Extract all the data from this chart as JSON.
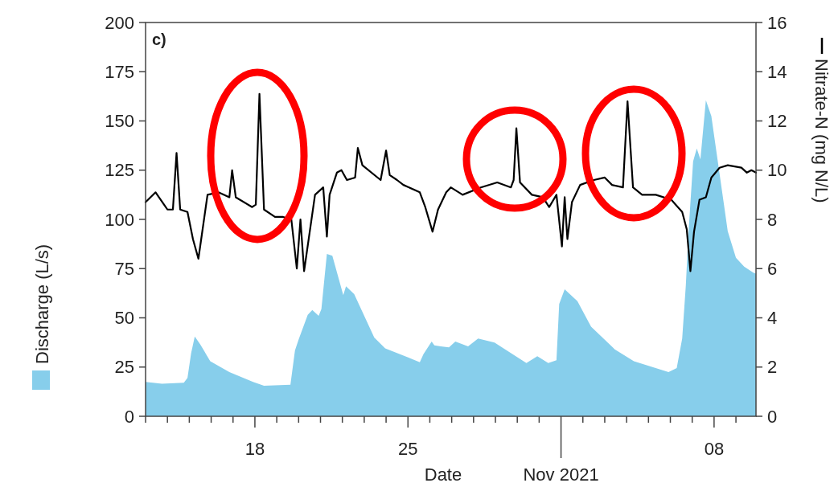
{
  "chart_data": {
    "type": "area",
    "annotations": [
      "c)",
      {
        "text": "Nov 2021",
        "x": "2021-11-01"
      }
    ],
    "xlabel": "Date",
    "ylabel": "Discharge (L/s)",
    "y2label": "Nitrate-N (mg N/L)",
    "xlim": [
      "2021-10-13T00:00",
      "2021-11-09T22:00"
    ],
    "xticks": [
      {
        "value": "2021-10-13",
        "label": null
      },
      {
        "value": "2021-10-14",
        "label": null
      },
      {
        "value": "2021-10-15",
        "label": null
      },
      {
        "value": "2021-10-16",
        "label": null
      },
      {
        "value": "2021-10-17",
        "label": null
      },
      {
        "value": "2021-10-18",
        "label": "18"
      },
      {
        "value": "2021-10-19",
        "label": null
      },
      {
        "value": "2021-10-20",
        "label": null
      },
      {
        "value": "2021-10-21",
        "label": null
      },
      {
        "value": "2021-10-22",
        "label": null
      },
      {
        "value": "2021-10-23",
        "label": null
      },
      {
        "value": "2021-10-24",
        "label": null
      },
      {
        "value": "2021-10-25",
        "label": "25"
      },
      {
        "value": "2021-10-26",
        "label": null
      },
      {
        "value": "2021-10-27",
        "label": null
      },
      {
        "value": "2021-10-28",
        "label": null
      },
      {
        "value": "2021-10-29",
        "label": null
      },
      {
        "value": "2021-10-30",
        "label": null
      },
      {
        "value": "2021-10-31",
        "label": null
      },
      {
        "value": "2021-11-01",
        "label": null
      },
      {
        "value": "2021-11-02",
        "label": null
      },
      {
        "value": "2021-11-03",
        "label": null
      },
      {
        "value": "2021-11-04",
        "label": null
      },
      {
        "value": "2021-11-05",
        "label": null
      },
      {
        "value": "2021-11-06",
        "label": null
      },
      {
        "value": "2021-11-07",
        "label": null
      },
      {
        "value": "2021-11-08",
        "label": "08"
      },
      {
        "value": "2021-11-09",
        "label": null
      }
    ],
    "ylim": [
      0,
      200
    ],
    "yticks": [
      0,
      25,
      50,
      75,
      100,
      125,
      150,
      175,
      200
    ],
    "y2lim": [
      0,
      16
    ],
    "y2ticks": [
      0,
      2,
      4,
      6,
      8,
      10,
      12,
      14,
      16
    ],
    "series": [
      {
        "color": "#87ceeb",
        "x": [
          "2021-10-13T00:00",
          "2021-10-13T18:00",
          "2021-10-14T18:00",
          "2021-10-14T22:00",
          "2021-10-15T02:00",
          "2021-10-15T06:00",
          "2021-10-15T12:00",
          "2021-10-15T23:00",
          "2021-10-16T20:00",
          "2021-10-17T22:00",
          "2021-10-18T10:00",
          "2021-10-19T15:00",
          "2021-10-19T20:00",
          "2021-10-20T00:00",
          "2021-10-20T10:00",
          "2021-10-20T15:00",
          "2021-10-20T22:00",
          "2021-10-21T01:00",
          "2021-10-21T07:00",
          "2021-10-21T13:00",
          "2021-10-22T01:00",
          "2021-10-22T04:00",
          "2021-10-22T13:00",
          "2021-10-23T11:00",
          "2021-10-23T23:00",
          "2021-10-25T13:00",
          "2021-10-25T17:00",
          "2021-10-26T02:00",
          "2021-10-26T05:00",
          "2021-10-26T12:00",
          "2021-10-26T21:00",
          "2021-10-27T04:00",
          "2021-10-27T18:00",
          "2021-10-28T05:00",
          "2021-10-28T23:00",
          "2021-10-30T10:00",
          "2021-10-30T22:00",
          "2021-10-31T10:00",
          "2021-10-31T19:00",
          "2021-10-31T22:00",
          "2021-11-01T04:00",
          "2021-11-01T18:00",
          "2021-11-02T09:00",
          "2021-11-03T11:00",
          "2021-11-04T08:00",
          "2021-11-05T22:00",
          "2021-11-06T07:00",
          "2021-11-06T13:00",
          "2021-11-06T17:00",
          "2021-11-06T20:00",
          "2021-11-07T01:00",
          "2021-11-07T05:00",
          "2021-11-07T09:00",
          "2021-11-07T15:00",
          "2021-11-07T21:00",
          "2021-11-08T15:00",
          "2021-11-09T00:00",
          "2021-11-09T09:00",
          "2021-11-09T19:00",
          "2021-11-09T22:00"
        ],
        "values": [
          17.5,
          16.5,
          17,
          19.5,
          32,
          40.5,
          36.5,
          28,
          22.5,
          17.5,
          15.5,
          16,
          33.5,
          39,
          51.5,
          54,
          51,
          54.5,
          82.5,
          81.5,
          61.5,
          66,
          62,
          40,
          34.5,
          27.5,
          31.5,
          38,
          36,
          35.5,
          35,
          38,
          35.5,
          39.5,
          37.5,
          27,
          30.5,
          27,
          28.5,
          57,
          64.5,
          58.5,
          45.5,
          34,
          28,
          22.5,
          24.5,
          39.5,
          66.5,
          94,
          129.5,
          136,
          130.5,
          160.5,
          152.5,
          94,
          80.5,
          76,
          73,
          72.5
        ]
      },
      {
        "type": "line",
        "axis": "y2",
        "color": "#000000",
        "x": [
          "2021-10-13T00:00",
          "2021-10-13T11:00",
          "2021-10-14T00:00",
          "2021-10-14T06:00",
          "2021-10-14T10:00",
          "2021-10-14T14:00",
          "2021-10-14T22:00",
          "2021-10-15T04:00",
          "2021-10-15T10:00",
          "2021-10-15T20:00",
          "2021-10-16T08:00",
          "2021-10-16T20:00",
          "2021-10-16T23:00",
          "2021-10-17T03:00",
          "2021-10-17T21:00",
          "2021-10-18T01:00",
          "2021-10-18T05:00",
          "2021-10-18T10:00",
          "2021-10-18T22:00",
          "2021-10-19T07:00",
          "2021-10-19T16:00",
          "2021-10-19T22:00",
          "2021-10-20T02:00",
          "2021-10-20T06:00",
          "2021-10-20T18:00",
          "2021-10-21T03:00",
          "2021-10-21T07:00",
          "2021-10-21T10:00",
          "2021-10-21T18:00",
          "2021-10-21T23:00",
          "2021-10-22T05:00",
          "2021-10-22T14:00",
          "2021-10-22T17:00",
          "2021-10-22T22:00",
          "2021-10-23T18:00",
          "2021-10-24T00:00",
          "2021-10-24T04:00",
          "2021-10-24T12:00",
          "2021-10-24T19:00",
          "2021-10-25T13:00",
          "2021-10-25T19:00",
          "2021-10-26T03:00",
          "2021-10-26T09:00",
          "2021-10-26T18:00",
          "2021-10-26T23:00",
          "2021-10-27T12:00",
          "2021-10-28T08:00",
          "2021-10-29T02:00",
          "2021-10-29T17:00",
          "2021-10-29T20:00",
          "2021-10-29T23:00",
          "2021-10-30T03:00",
          "2021-10-30T16:00",
          "2021-10-31T04:00",
          "2021-10-31T11:00",
          "2021-10-31T19:00",
          "2021-11-01T01:00",
          "2021-11-01T04:00",
          "2021-11-01T07:00",
          "2021-11-01T12:00",
          "2021-11-01T21:00",
          "2021-11-02T12:00",
          "2021-11-03T00:00",
          "2021-11-03T08:00",
          "2021-11-03T20:00",
          "2021-11-04T01:00",
          "2021-11-04T07:00",
          "2021-11-04T17:00",
          "2021-11-05T08:00",
          "2021-11-06T01:00",
          "2021-11-06T13:00",
          "2021-11-06T18:00",
          "2021-11-06T22:00",
          "2021-11-07T02:00",
          "2021-11-07T08:00",
          "2021-11-07T15:00",
          "2021-11-07T21:00",
          "2021-11-08T06:00",
          "2021-11-08T15:00",
          "2021-11-09T06:00",
          "2021-11-09T12:00",
          "2021-11-09T17:00",
          "2021-11-09T22:00"
        ],
        "values": [
          8.7,
          9.1,
          8.4,
          8.4,
          10.7,
          8.4,
          8.3,
          7.2,
          6.4,
          9.0,
          9.1,
          8.9,
          10.0,
          8.9,
          8.5,
          8.6,
          13.1,
          8.4,
          8.1,
          8.1,
          8.0,
          6.0,
          8.0,
          5.9,
          9.0,
          9.3,
          7.3,
          9.0,
          9.9,
          10.0,
          9.6,
          9.7,
          10.9,
          10.2,
          9.6,
          10.8,
          9.8,
          9.6,
          9.4,
          9.1,
          8.5,
          7.5,
          8.4,
          9.1,
          9.3,
          9.0,
          9.3,
          9.5,
          9.3,
          9.6,
          11.7,
          9.5,
          9.0,
          8.9,
          8.5,
          9.0,
          6.9,
          8.9,
          7.2,
          8.7,
          9.4,
          9.6,
          9.7,
          9.4,
          9.3,
          12.8,
          9.3,
          9.0,
          9.0,
          8.8,
          8.3,
          7.6,
          5.9,
          7.5,
          8.8,
          8.9,
          9.7,
          10.1,
          10.2,
          10.1,
          9.9,
          10.0,
          9.9
        ]
      }
    ]
  }
}
